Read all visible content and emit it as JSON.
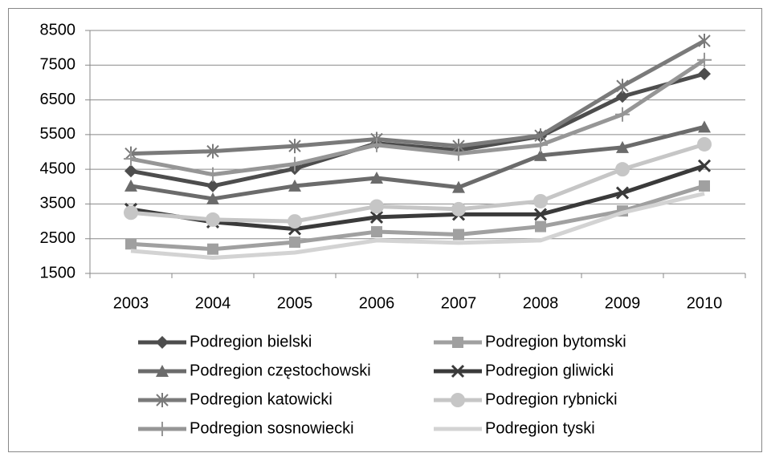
{
  "chart_data": {
    "type": "line",
    "categories": [
      "2003",
      "2004",
      "2005",
      "2006",
      "2007",
      "2008",
      "2009",
      "2010"
    ],
    "series": [
      {
        "name": "Podregion bielski",
        "color": "#4d4d4d",
        "marker": "diamond",
        "values": [
          4450,
          4020,
          4520,
          5250,
          5050,
          5450,
          6600,
          7250
        ]
      },
      {
        "name": "Podregion bytomski",
        "color": "#a0a0a0",
        "marker": "square",
        "values": [
          2350,
          2200,
          2400,
          2700,
          2620,
          2850,
          3300,
          4020
        ]
      },
      {
        "name": "Podregion częstochowski",
        "color": "#6b6b6b",
        "marker": "triangle",
        "values": [
          4020,
          3650,
          4020,
          4250,
          3980,
          4900,
          5130,
          5720
        ]
      },
      {
        "name": "Podregion gliwicki",
        "color": "#3a3a3a",
        "marker": "x",
        "values": [
          3350,
          2980,
          2780,
          3120,
          3200,
          3200,
          3820,
          4600
        ]
      },
      {
        "name": "Podregion katowicki",
        "color": "#7a7a7a",
        "marker": "star",
        "values": [
          4950,
          5020,
          5170,
          5370,
          5170,
          5470,
          6900,
          8200
        ]
      },
      {
        "name": "Podregion rybnicki",
        "color": "#c6c6c6",
        "marker": "circle",
        "values": [
          3250,
          3050,
          3000,
          3430,
          3350,
          3580,
          4500,
          5220
        ]
      },
      {
        "name": "Podregion sosnowiecki",
        "color": "#969696",
        "marker": "plus",
        "values": [
          4800,
          4350,
          4650,
          5200,
          4950,
          5200,
          6080,
          7650
        ]
      },
      {
        "name": "Podregion tyski",
        "color": "#d3d3d3",
        "marker": "none",
        "values": [
          2150,
          1950,
          2100,
          2450,
          2380,
          2450,
          3250,
          3800
        ]
      }
    ],
    "ylim": [
      1500,
      8500
    ],
    "yticks": [
      1500,
      2500,
      3500,
      4500,
      5500,
      6500,
      7500,
      8500
    ],
    "grid": true
  }
}
